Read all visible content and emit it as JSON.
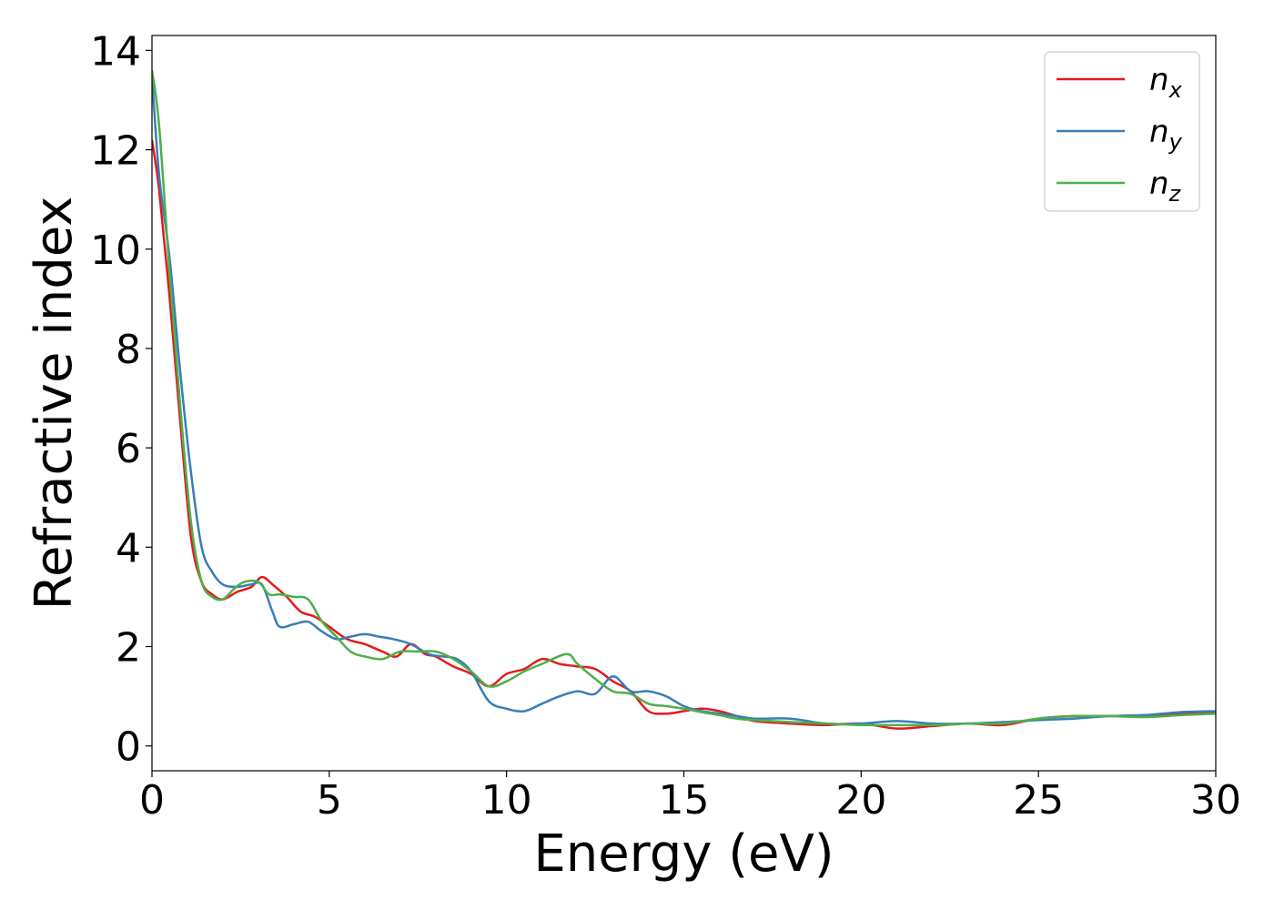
{
  "chart_data": {
    "type": "line",
    "title": "",
    "xlabel": "Energy (eV)",
    "ylabel": "Refractive index",
    "xlim": [
      0,
      30
    ],
    "ylim": [
      -0.5,
      14.3
    ],
    "xticks": [
      0,
      5,
      10,
      15,
      20,
      25,
      30
    ],
    "yticks": [
      0,
      2,
      4,
      6,
      8,
      10,
      12,
      14
    ],
    "grid": false,
    "legend_position": "top-right",
    "series": [
      {
        "name": "n",
        "subscript": "x",
        "color": "#e41a1c",
        "x": [
          0,
          0.2,
          0.5,
          0.8,
          1.1,
          1.4,
          1.7,
          2.0,
          2.4,
          2.8,
          3.1,
          3.4,
          3.8,
          4.2,
          4.6,
          5.0,
          5.5,
          6.0,
          6.5,
          6.9,
          7.3,
          7.7,
          8.0,
          8.5,
          9.0,
          9.5,
          10.0,
          10.5,
          11.0,
          11.5,
          12.0,
          12.5,
          13.0,
          13.5,
          14.0,
          14.5,
          15.0,
          15.5,
          16.0,
          16.5,
          17.0,
          18.0,
          19.0,
          20.0,
          21.0,
          22.0,
          23.0,
          24.0,
          25.0,
          26.0,
          27.0,
          28.0,
          29.0,
          30.0
        ],
        "y": [
          12.2,
          11.2,
          9.0,
          6.5,
          4.2,
          3.3,
          3.05,
          2.95,
          3.1,
          3.2,
          3.4,
          3.25,
          3.0,
          2.7,
          2.6,
          2.4,
          2.15,
          2.05,
          1.9,
          1.8,
          2.05,
          1.85,
          1.8,
          1.6,
          1.45,
          1.2,
          1.45,
          1.55,
          1.75,
          1.65,
          1.6,
          1.55,
          1.3,
          1.1,
          0.7,
          0.65,
          0.7,
          0.75,
          0.7,
          0.6,
          0.5,
          0.45,
          0.42,
          0.45,
          0.35,
          0.4,
          0.45,
          0.42,
          0.55,
          0.6,
          0.6,
          0.62,
          0.65,
          0.68
        ]
      },
      {
        "name": "n",
        "subscript": "y",
        "color": "#377eb8",
        "x": [
          0,
          0.2,
          0.5,
          0.8,
          1.1,
          1.4,
          1.7,
          2.0,
          2.4,
          2.8,
          3.1,
          3.4,
          3.6,
          4.0,
          4.4,
          4.8,
          5.2,
          5.6,
          6.0,
          6.4,
          6.8,
          7.3,
          7.8,
          8.2,
          8.6,
          9.0,
          9.5,
          10.0,
          10.5,
          11.0,
          11.5,
          12.0,
          12.5,
          13.0,
          13.5,
          14.0,
          14.5,
          15.0,
          15.5,
          16.0,
          16.5,
          17.0,
          18.0,
          19.0,
          20.0,
          21.0,
          22.0,
          23.0,
          24.0,
          25.0,
          26.0,
          27.0,
          28.0,
          29.0,
          30.0
        ],
        "y": [
          13.5,
          11.5,
          9.8,
          7.5,
          5.5,
          4.0,
          3.5,
          3.25,
          3.2,
          3.25,
          3.25,
          2.7,
          2.4,
          2.45,
          2.5,
          2.3,
          2.15,
          2.2,
          2.25,
          2.2,
          2.15,
          2.05,
          1.85,
          1.8,
          1.75,
          1.5,
          0.9,
          0.75,
          0.7,
          0.85,
          1.0,
          1.1,
          1.05,
          1.4,
          1.1,
          1.1,
          1.0,
          0.8,
          0.7,
          0.65,
          0.6,
          0.55,
          0.55,
          0.45,
          0.45,
          0.5,
          0.45,
          0.45,
          0.48,
          0.52,
          0.55,
          0.6,
          0.62,
          0.68,
          0.7
        ]
      },
      {
        "name": "n",
        "subscript": "z",
        "color": "#4daf4a",
        "x": [
          0,
          0.2,
          0.5,
          0.8,
          1.1,
          1.4,
          1.7,
          2.0,
          2.3,
          2.6,
          3.0,
          3.3,
          3.6,
          4.0,
          4.4,
          4.8,
          5.2,
          5.6,
          6.0,
          6.5,
          7.0,
          7.5,
          8.0,
          8.5,
          9.0,
          9.5,
          10.0,
          10.5,
          11.0,
          11.7,
          12.0,
          12.5,
          13.0,
          13.5,
          14.0,
          14.5,
          15.0,
          15.5,
          16.0,
          16.5,
          17.0,
          18.0,
          19.0,
          20.0,
          21.0,
          22.0,
          23.0,
          24.0,
          25.0,
          26.0,
          27.0,
          28.0,
          29.0,
          30.0
        ],
        "y": [
          13.6,
          12.5,
          9.5,
          6.8,
          4.5,
          3.3,
          3.0,
          2.95,
          3.15,
          3.3,
          3.3,
          3.05,
          3.05,
          3.0,
          2.95,
          2.5,
          2.2,
          1.9,
          1.8,
          1.75,
          1.9,
          1.9,
          1.9,
          1.75,
          1.5,
          1.2,
          1.3,
          1.5,
          1.65,
          1.85,
          1.65,
          1.35,
          1.1,
          1.05,
          0.85,
          0.8,
          0.75,
          0.68,
          0.62,
          0.55,
          0.52,
          0.48,
          0.45,
          0.42,
          0.42,
          0.42,
          0.45,
          0.45,
          0.55,
          0.6,
          0.6,
          0.58,
          0.62,
          0.65
        ]
      }
    ]
  }
}
